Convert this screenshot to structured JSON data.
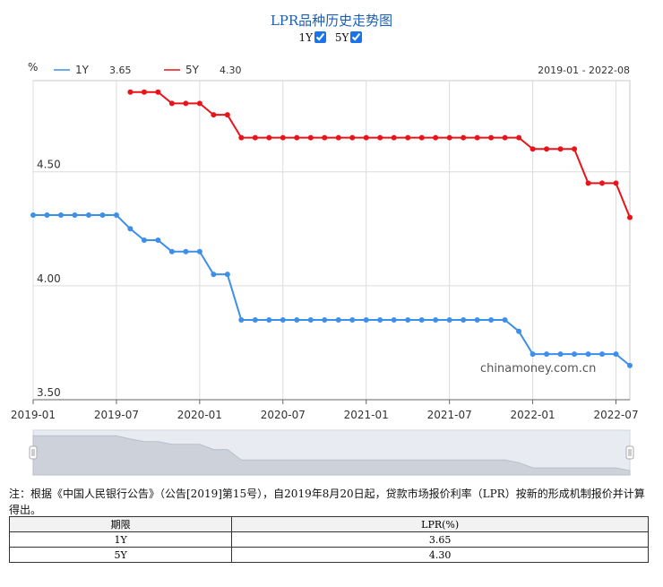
{
  "title": "LPR品种历史走势图",
  "toggles": [
    {
      "label": "1Y",
      "checked": true
    },
    {
      "label": "5Y",
      "checked": true
    }
  ],
  "date_range": "2019-01 - 2022-08",
  "watermark": "chinamoney.com.cn",
  "note": "注：根据《中国人民银行公告》（公告[2019]第15号），自2019年8月20日起，贷款市场报价利率（LPR）按新的形成机制报价并计算得出。",
  "table": {
    "headers": [
      "期限",
      "LPR(%)"
    ],
    "rows": [
      [
        "1Y",
        "3.65"
      ],
      [
        "5Y",
        "4.30"
      ]
    ]
  },
  "chart_data": {
    "type": "line",
    "ylabel": "%",
    "ylim": [
      3.5,
      4.9
    ],
    "yticks": [
      "3.50",
      "4.00",
      "4.50"
    ],
    "x_start": "2019-01",
    "x_end": "2022-08",
    "xticks": [
      "2019-01",
      "2019-07",
      "2020-01",
      "2020-07",
      "2021-01",
      "2021-07",
      "2022-01",
      "2022-07"
    ],
    "grid": true,
    "legend_position": "top-left",
    "x": [
      "2019-01",
      "2019-02",
      "2019-03",
      "2019-04",
      "2019-05",
      "2019-06",
      "2019-07",
      "2019-08",
      "2019-09",
      "2019-10",
      "2019-11",
      "2019-12",
      "2020-01",
      "2020-02",
      "2020-03",
      "2020-04",
      "2020-05",
      "2020-06",
      "2020-07",
      "2020-08",
      "2020-09",
      "2020-10",
      "2020-11",
      "2020-12",
      "2021-01",
      "2021-02",
      "2021-03",
      "2021-04",
      "2021-05",
      "2021-06",
      "2021-07",
      "2021-08",
      "2021-09",
      "2021-10",
      "2021-11",
      "2021-12",
      "2022-01",
      "2022-02",
      "2022-03",
      "2022-04",
      "2022-05",
      "2022-06",
      "2022-07",
      "2022-08"
    ],
    "series": [
      {
        "name": "1Y",
        "latest": "3.65",
        "color": "#3d8fe8",
        "values": [
          4.31,
          4.31,
          4.31,
          4.31,
          4.31,
          4.31,
          4.31,
          4.25,
          4.2,
          4.2,
          4.15,
          4.15,
          4.15,
          4.05,
          4.05,
          3.85,
          3.85,
          3.85,
          3.85,
          3.85,
          3.85,
          3.85,
          3.85,
          3.85,
          3.85,
          3.85,
          3.85,
          3.85,
          3.85,
          3.85,
          3.85,
          3.85,
          3.85,
          3.85,
          3.85,
          3.8,
          3.7,
          3.7,
          3.7,
          3.7,
          3.7,
          3.7,
          3.7,
          3.65
        ]
      },
      {
        "name": "5Y",
        "latest": "4.30",
        "color": "#e8141a",
        "values": [
          null,
          null,
          null,
          null,
          null,
          null,
          null,
          4.85,
          4.85,
          4.85,
          4.8,
          4.8,
          4.8,
          4.75,
          4.75,
          4.65,
          4.65,
          4.65,
          4.65,
          4.65,
          4.65,
          4.65,
          4.65,
          4.65,
          4.65,
          4.65,
          4.65,
          4.65,
          4.65,
          4.65,
          4.65,
          4.65,
          4.65,
          4.65,
          4.65,
          4.65,
          4.6,
          4.6,
          4.6,
          4.6,
          4.45,
          4.45,
          4.45,
          4.3
        ]
      }
    ]
  }
}
